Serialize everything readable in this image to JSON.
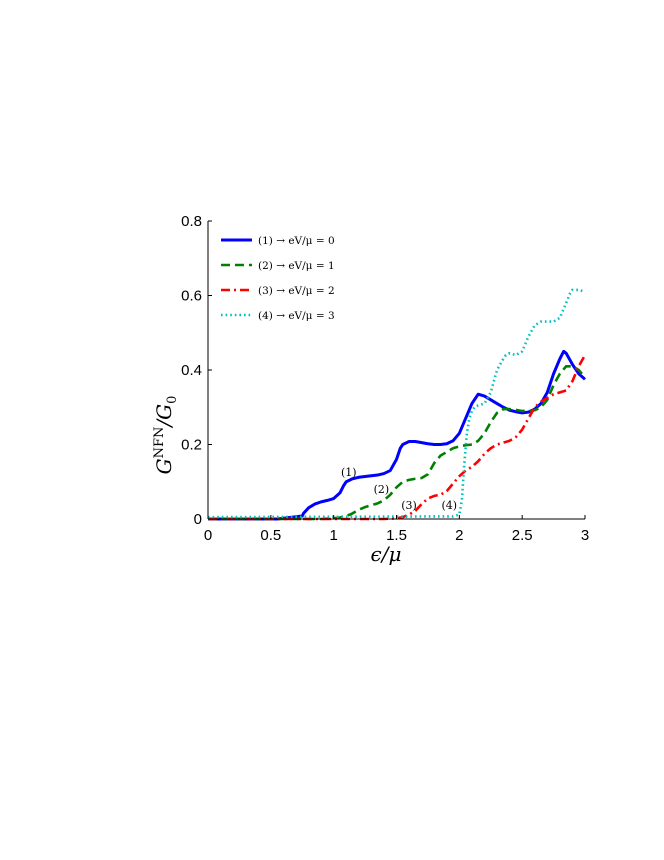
{
  "chart_data": {
    "type": "line",
    "xlabel": "ϵ/μ",
    "ylabel": "G",
    "ylabel_sup": "NFN",
    "ylabel_tail": "/G",
    "ylabel_sub": "0",
    "xlim": [
      0,
      3
    ],
    "ylim": [
      0,
      0.8
    ],
    "xticks": [
      "0",
      "0.5",
      "1",
      "1.5",
      "2",
      "2.5",
      "3"
    ],
    "yticks": [
      "0",
      "0.2",
      "0.4",
      "0.6",
      "0.8"
    ],
    "grid": false,
    "legend_position": "top-left",
    "series": [
      {
        "name": "(1) → eV/μ = 0",
        "color": "#0000ff",
        "style": "solid",
        "x": [
          0,
          0.55,
          0.6,
          0.65,
          0.7,
          0.75,
          0.76,
          0.8,
          0.85,
          0.9,
          0.95,
          1.0,
          1.05,
          1.08,
          1.1,
          1.15,
          1.2,
          1.25,
          1.3,
          1.35,
          1.4,
          1.45,
          1.5,
          1.53,
          1.55,
          1.6,
          1.65,
          1.7,
          1.75,
          1.8,
          1.85,
          1.9,
          1.95,
          2.0,
          2.05,
          2.1,
          2.15,
          2.2,
          2.25,
          2.3,
          2.35,
          2.4,
          2.45,
          2.5,
          2.55,
          2.6,
          2.65,
          2.7,
          2.75,
          2.8,
          2.83,
          2.85,
          2.9,
          2.95,
          3.0
        ],
        "y": [
          0,
          0,
          0.002,
          0.004,
          0.006,
          0.008,
          0.015,
          0.03,
          0.04,
          0.046,
          0.05,
          0.055,
          0.07,
          0.09,
          0.1,
          0.108,
          0.112,
          0.114,
          0.116,
          0.118,
          0.122,
          0.13,
          0.16,
          0.19,
          0.2,
          0.208,
          0.208,
          0.205,
          0.202,
          0.2,
          0.2,
          0.202,
          0.21,
          0.23,
          0.27,
          0.31,
          0.335,
          0.33,
          0.32,
          0.31,
          0.3,
          0.292,
          0.288,
          0.285,
          0.287,
          0.295,
          0.31,
          0.34,
          0.39,
          0.43,
          0.45,
          0.445,
          0.415,
          0.39,
          0.375
        ]
      },
      {
        "name": "(2) → eV/μ = 1",
        "color": "#008000",
        "style": "dashed",
        "x": [
          0,
          0.9,
          1.0,
          1.05,
          1.1,
          1.15,
          1.2,
          1.25,
          1.3,
          1.35,
          1.4,
          1.45,
          1.5,
          1.55,
          1.6,
          1.65,
          1.7,
          1.75,
          1.8,
          1.85,
          1.9,
          1.95,
          2.0,
          2.05,
          2.1,
          2.15,
          2.2,
          2.25,
          2.3,
          2.35,
          2.4,
          2.45,
          2.5,
          2.55,
          2.6,
          2.65,
          2.7,
          2.75,
          2.8,
          2.85,
          2.9,
          2.95,
          3.0
        ],
        "y": [
          0,
          0,
          0.002,
          0.004,
          0.008,
          0.015,
          0.025,
          0.032,
          0.037,
          0.042,
          0.05,
          0.065,
          0.085,
          0.1,
          0.105,
          0.108,
          0.11,
          0.12,
          0.15,
          0.17,
          0.18,
          0.19,
          0.195,
          0.198,
          0.2,
          0.21,
          0.23,
          0.26,
          0.285,
          0.295,
          0.295,
          0.293,
          0.29,
          0.29,
          0.292,
          0.3,
          0.32,
          0.36,
          0.39,
          0.41,
          0.41,
          0.4,
          0.38
        ]
      },
      {
        "name": "(3) → eV/μ = 2",
        "color": "#ff0000",
        "style": "dashdot",
        "x": [
          0,
          1.4,
          1.5,
          1.55,
          1.6,
          1.65,
          1.7,
          1.75,
          1.8,
          1.85,
          1.9,
          1.95,
          2.0,
          2.05,
          2.1,
          2.15,
          2.2,
          2.25,
          2.3,
          2.35,
          2.4,
          2.45,
          2.5,
          2.55,
          2.6,
          2.65,
          2.7,
          2.75,
          2.8,
          2.85,
          2.9,
          2.95,
          3.0
        ],
        "y": [
          0,
          0,
          0.002,
          0.005,
          0.012,
          0.022,
          0.04,
          0.055,
          0.062,
          0.065,
          0.075,
          0.095,
          0.115,
          0.13,
          0.14,
          0.155,
          0.175,
          0.19,
          0.2,
          0.205,
          0.21,
          0.22,
          0.24,
          0.27,
          0.3,
          0.315,
          0.325,
          0.335,
          0.34,
          0.345,
          0.37,
          0.41,
          0.44
        ]
      },
      {
        "name": "(4) → eV/μ = 3",
        "color": "#00bfbf",
        "style": "dotted",
        "x": [
          0,
          1.95,
          2.0,
          2.02,
          2.04,
          2.06,
          2.08,
          2.1,
          2.12,
          2.15,
          2.2,
          2.25,
          2.3,
          2.35,
          2.37,
          2.4,
          2.45,
          2.5,
          2.55,
          2.6,
          2.65,
          2.7,
          2.75,
          2.8,
          2.85,
          2.88,
          2.9,
          2.95,
          3.0
        ],
        "y": [
          0.005,
          0.007,
          0.012,
          0.05,
          0.15,
          0.23,
          0.27,
          0.29,
          0.3,
          0.305,
          0.31,
          0.34,
          0.4,
          0.43,
          0.44,
          0.445,
          0.44,
          0.45,
          0.49,
          0.52,
          0.53,
          0.53,
          0.53,
          0.54,
          0.58,
          0.605,
          0.615,
          0.615,
          0.61
        ]
      }
    ],
    "annotations": [
      {
        "text": "(1)",
        "x": 1.12,
        "y": 0.115
      },
      {
        "text": "(2)",
        "x": 1.38,
        "y": 0.07
      },
      {
        "text": "(3)",
        "x": 1.6,
        "y": 0.027
      },
      {
        "text": "(4)",
        "x": 1.92,
        "y": 0.027
      }
    ]
  }
}
